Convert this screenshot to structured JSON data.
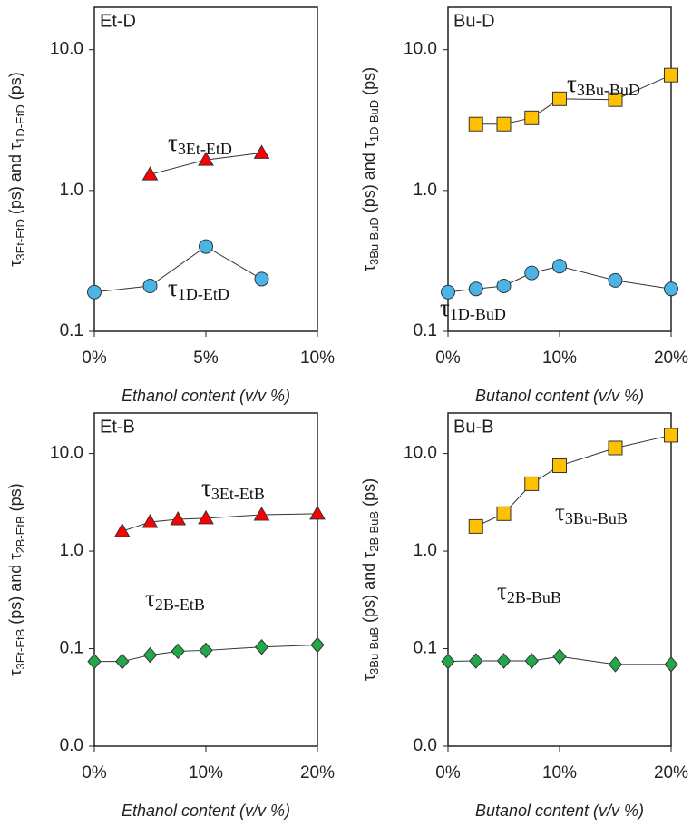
{
  "chart_data": [
    {
      "type": "line",
      "title": "Et-D",
      "xlabel": "Ethanol content (v/v %)",
      "ylabel": "τ3Et-EtD (ps) and τ1D-EtD (ps)",
      "log_scale": true,
      "xlim": [
        0,
        10
      ],
      "xticks": [
        {
          "value": 0,
          "label": "0%"
        },
        {
          "value": 5,
          "label": "5%"
        },
        {
          "value": 10,
          "label": "10%"
        }
      ],
      "ylim": [
        0.1,
        20
      ],
      "yticks": [
        0.1,
        {
          "value": 1,
          "label": "1.0"
        },
        {
          "value": 10,
          "label": "10.0"
        }
      ],
      "series": [
        {
          "name": "τ3Et-EtD",
          "color": "#ff0000",
          "marker": "triangle",
          "x": [
            2.5,
            5,
            7.5
          ],
          "values": [
            1.3,
            1.65,
            1.85
          ]
        },
        {
          "name": "τ1D-EtD",
          "color": "#4bb4e6",
          "marker": "circle",
          "x": [
            0,
            2.5,
            5,
            7.5
          ],
          "values": [
            0.19,
            0.21,
            0.4,
            0.235
          ]
        }
      ]
    },
    {
      "type": "line",
      "title": "Bu-D",
      "xlabel": "Butanol content (v/v %)",
      "ylabel": "τ3Bu-BuD (ps) and τ1D-BuD (ps)",
      "log_scale": true,
      "xlim": [
        0,
        20
      ],
      "xticks": [
        {
          "value": 0,
          "label": "0%"
        },
        {
          "value": 10,
          "label": "10%"
        },
        {
          "value": 20,
          "label": "20%"
        }
      ],
      "ylim": [
        0.1,
        20
      ],
      "yticks": [
        0.1,
        {
          "value": 1,
          "label": "1.0"
        },
        {
          "value": 10,
          "label": "10.0"
        }
      ],
      "series": [
        {
          "name": "τ3Bu-BuD",
          "color": "#ffc000",
          "marker": "square",
          "x": [
            2.5,
            5,
            7.5,
            10,
            15,
            20
          ],
          "values": [
            2.96,
            2.96,
            3.28,
            4.48,
            4.42,
            6.6
          ]
        },
        {
          "name": "τ1D-BuD",
          "color": "#4bb4e6",
          "marker": "circle",
          "x": [
            0,
            2.5,
            5,
            7.5,
            10,
            15,
            20
          ],
          "values": [
            0.19,
            0.2,
            0.21,
            0.26,
            0.29,
            0.23,
            0.2
          ]
        }
      ]
    },
    {
      "type": "line",
      "title": "Et-B",
      "xlabel": "Ethanol content (v/v %)",
      "ylabel": "τ3Et-EtB (ps) and τ2B-EtB (ps)",
      "log_scale": true,
      "xlim": [
        0,
        20
      ],
      "xticks": [
        {
          "value": 0,
          "label": "0%"
        },
        {
          "value": 10,
          "label": "10%"
        },
        {
          "value": 20,
          "label": "20%"
        }
      ],
      "ylim": [
        0.01,
        26
      ],
      "yticks": [
        {
          "value": 0.01,
          "label": "0.0"
        },
        0.1,
        {
          "value": 1,
          "label": "1.0"
        },
        {
          "value": 10,
          "label": "10.0"
        }
      ],
      "series": [
        {
          "name": "τ3Et-EtB",
          "color": "#ff0000",
          "marker": "triangle",
          "x": [
            2.5,
            5,
            7.5,
            10,
            15,
            20
          ],
          "values": [
            1.6,
            1.99,
            2.12,
            2.17,
            2.36,
            2.42
          ]
        },
        {
          "name": "τ2B-EtB",
          "color": "#22a84a",
          "marker": "diamond",
          "x": [
            0,
            2.5,
            5,
            7.5,
            10,
            15,
            20
          ],
          "values": [
            0.074,
            0.074,
            0.086,
            0.094,
            0.096,
            0.104,
            0.109
          ]
        }
      ]
    },
    {
      "type": "line",
      "title": "Bu-B",
      "xlabel": "Butanol content (v/v %)",
      "ylabel": "τ3Bu-BuB (ps) and τ2B-BuB (ps)",
      "log_scale": true,
      "xlim": [
        0,
        20
      ],
      "xticks": [
        {
          "value": 0,
          "label": "0%"
        },
        {
          "value": 10,
          "label": "10%"
        },
        {
          "value": 20,
          "label": "20%"
        }
      ],
      "ylim": [
        0.01,
        26
      ],
      "yticks": [
        {
          "value": 0.01,
          "label": "0.0"
        },
        0.1,
        {
          "value": 1,
          "label": "1.0"
        },
        {
          "value": 10,
          "label": "10.0"
        }
      ],
      "series": [
        {
          "name": "τ3Bu-BuB",
          "color": "#ffc000",
          "marker": "square",
          "x": [
            2.5,
            5,
            7.5,
            10,
            15,
            20
          ],
          "values": [
            1.79,
            2.42,
            4.9,
            7.5,
            11.4,
            15.4
          ]
        },
        {
          "name": "τ2B-BuB",
          "color": "#22a84a",
          "marker": "diamond",
          "x": [
            0,
            2.5,
            5,
            7.5,
            10,
            15,
            20
          ],
          "values": [
            0.074,
            0.075,
            0.075,
            0.075,
            0.083,
            0.069,
            0.069
          ]
        }
      ]
    }
  ]
}
